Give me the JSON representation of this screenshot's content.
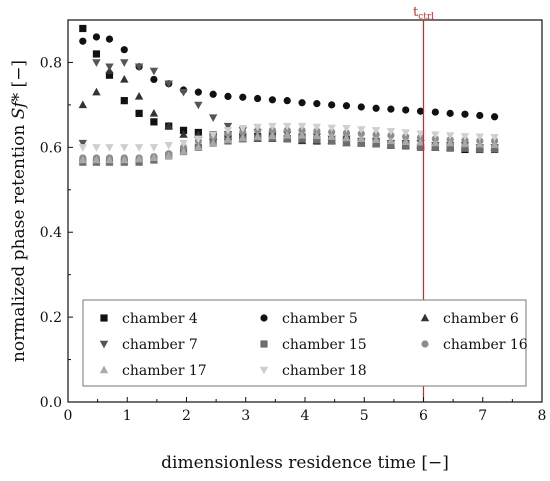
{
  "chart_data": {
    "type": "scatter",
    "xlabel": "dimensionless residence time [−]",
    "ylabel_prefix": "normalized phase retention ",
    "ylabel_italic": "Sf*",
    "ylabel_suffix": " [−]",
    "xlim": [
      0,
      8
    ],
    "ylim": [
      0,
      0.9
    ],
    "xticks": [
      0,
      1,
      2,
      3,
      4,
      5,
      6,
      7,
      8
    ],
    "yticks": [
      0.0,
      0.2,
      0.4,
      0.6,
      0.8
    ],
    "ytick_labels": [
      "0.0",
      "0.2",
      "0.4",
      "0.6",
      "0.8"
    ],
    "legend_position": "lower-center",
    "annotation": {
      "text_main": "t",
      "text_sub": "ctrl",
      "x": 6,
      "color": "#d62728"
    },
    "x": [
      0.25,
      0.48,
      0.7,
      0.95,
      1.2,
      1.45,
      1.7,
      1.95,
      2.2,
      2.45,
      2.7,
      2.95,
      3.2,
      3.45,
      3.7,
      3.95,
      4.2,
      4.45,
      4.7,
      4.95,
      5.2,
      5.45,
      5.7,
      5.95,
      6.2,
      6.45,
      6.7,
      6.95,
      7.2
    ],
    "series": [
      {
        "name": "chamber 4",
        "marker": "square",
        "color": "#111111",
        "values": [
          0.88,
          0.82,
          0.77,
          0.71,
          0.68,
          0.66,
          0.65,
          0.64,
          0.635,
          0.63,
          0.63,
          0.625,
          0.625,
          0.625,
          0.62,
          0.62,
          0.615,
          0.615,
          0.615,
          0.61,
          0.61,
          0.605,
          0.605,
          0.6,
          0.6,
          0.6,
          0.595,
          0.595,
          0.595
        ]
      },
      {
        "name": "chamber 5",
        "marker": "circle",
        "color": "#111111",
        "values": [
          0.85,
          0.86,
          0.855,
          0.83,
          0.79,
          0.76,
          0.75,
          0.735,
          0.73,
          0.725,
          0.72,
          0.718,
          0.715,
          0.712,
          0.71,
          0.705,
          0.703,
          0.7,
          0.698,
          0.695,
          0.692,
          0.69,
          0.688,
          0.685,
          0.683,
          0.68,
          0.678,
          0.675,
          0.672
        ]
      },
      {
        "name": "chamber 6",
        "marker": "triangle-up",
        "color": "#333333",
        "values": [
          0.7,
          0.73,
          0.78,
          0.76,
          0.72,
          0.68,
          0.65,
          0.63,
          0.63,
          0.625,
          0.625,
          0.62,
          0.62,
          0.62,
          0.62,
          0.615,
          0.615,
          0.615,
          0.61,
          0.61,
          0.61,
          0.605,
          0.605,
          0.605,
          0.6,
          0.6,
          0.6,
          0.6,
          0.6
        ]
      },
      {
        "name": "chamber 7",
        "marker": "triangle-down",
        "color": "#555555",
        "values": [
          0.61,
          0.8,
          0.79,
          0.8,
          0.79,
          0.78,
          0.75,
          0.73,
          0.7,
          0.67,
          0.65,
          0.64,
          0.635,
          0.63,
          0.63,
          0.625,
          0.625,
          0.62,
          0.62,
          0.615,
          0.615,
          0.61,
          0.61,
          0.61,
          0.605,
          0.605,
          0.605,
          0.6,
          0.6
        ]
      },
      {
        "name": "chamber 15",
        "marker": "square",
        "color": "#6e6e6e",
        "values": [
          0.565,
          0.565,
          0.565,
          0.565,
          0.565,
          0.57,
          0.58,
          0.59,
          0.6,
          0.61,
          0.615,
          0.62,
          0.622,
          0.622,
          0.62,
          0.62,
          0.618,
          0.615,
          0.612,
          0.61,
          0.608,
          0.605,
          0.603,
          0.6,
          0.6,
          0.598,
          0.598,
          0.596,
          0.596
        ]
      },
      {
        "name": "chamber 16",
        "marker": "circle",
        "color": "#8c8c8c",
        "values": [
          0.575,
          0.575,
          0.575,
          0.575,
          0.575,
          0.578,
          0.585,
          0.6,
          0.615,
          0.625,
          0.632,
          0.636,
          0.64,
          0.64,
          0.64,
          0.64,
          0.638,
          0.636,
          0.634,
          0.632,
          0.63,
          0.628,
          0.625,
          0.623,
          0.62,
          0.618,
          0.617,
          0.615,
          0.615
        ]
      },
      {
        "name": "chamber 17",
        "marker": "triangle-up",
        "color": "#a9a9a9",
        "values": [
          0.57,
          0.57,
          0.57,
          0.57,
          0.572,
          0.575,
          0.58,
          0.59,
          0.6,
          0.61,
          0.618,
          0.622,
          0.625,
          0.627,
          0.628,
          0.628,
          0.627,
          0.625,
          0.622,
          0.62,
          0.618,
          0.615,
          0.613,
          0.612,
          0.61,
          0.61,
          0.608,
          0.607,
          0.606
        ]
      },
      {
        "name": "chamber 18",
        "marker": "triangle-down",
        "color": "#cfcfcf",
        "values": [
          0.6,
          0.6,
          0.6,
          0.6,
          0.6,
          0.6,
          0.605,
          0.61,
          0.62,
          0.63,
          0.64,
          0.645,
          0.648,
          0.65,
          0.65,
          0.65,
          0.648,
          0.646,
          0.645,
          0.642,
          0.64,
          0.638,
          0.635,
          0.632,
          0.63,
          0.628,
          0.626,
          0.625,
          0.624
        ]
      }
    ]
  }
}
